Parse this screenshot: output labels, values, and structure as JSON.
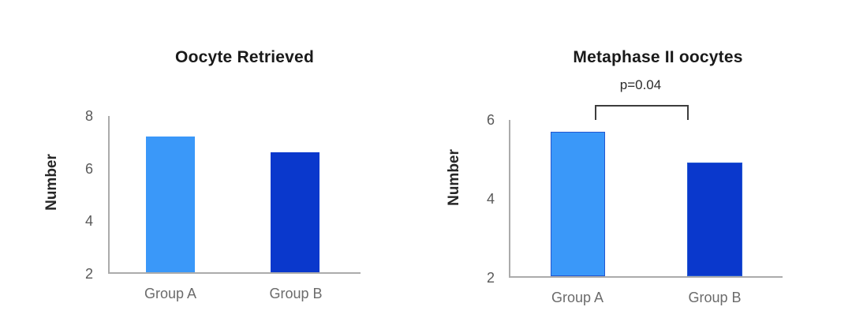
{
  "page": {
    "background_hex": "#ffffff"
  },
  "chart_data": [
    {
      "type": "bar",
      "title": "Oocyte Retrieved",
      "xlabel": "",
      "ylabel": "Number",
      "categories": [
        "Group A",
        "Group B"
      ],
      "values": [
        7.2,
        6.6
      ],
      "bar_colors_hex": [
        "#3a98f9",
        "#0a38cc"
      ],
      "yticks": [
        8,
        6,
        4,
        2
      ],
      "ylim": [
        2,
        8
      ],
      "grid": false,
      "legend": "none",
      "annotation": ""
    },
    {
      "type": "bar",
      "title": "Metaphase II oocytes",
      "xlabel": "",
      "ylabel": "Number",
      "categories": [
        "Group A",
        "Group B"
      ],
      "values": [
        5.7,
        4.9
      ],
      "bar_colors_hex": [
        "#3a98f9",
        "#0a38cc"
      ],
      "bar_border_hex": "#2257d0",
      "yticks": [
        6,
        4,
        2
      ],
      "ylim": [
        2,
        6
      ],
      "grid": false,
      "legend": "none",
      "annotation": "p=0.04",
      "annotation_connects": [
        "Group A",
        "Group B"
      ]
    }
  ]
}
